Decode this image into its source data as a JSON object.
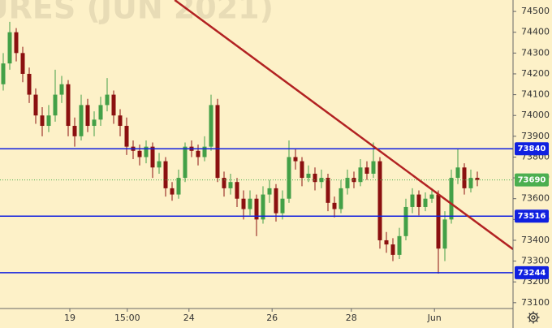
{
  "chart_data": {
    "type": "candlestick",
    "watermark": "URES (JUN 2021)",
    "background": "#fdf1c8",
    "up_color": "#43a047",
    "down_color": "#8b1010",
    "open": [
      74150,
      74250,
      74400,
      74300,
      74200,
      74100,
      74000,
      73950,
      74000,
      74100,
      74150,
      73950,
      73900,
      74050,
      73950,
      73980,
      74050,
      74100,
      74000,
      73950,
      73850,
      73830,
      73800,
      73850,
      73750,
      73780,
      73650,
      73620,
      73700,
      73850,
      73830,
      73800,
      73850,
      74050,
      73700,
      73650,
      73680,
      73600,
      73550,
      73600,
      73500,
      73620,
      73650,
      73530,
      73600,
      73800,
      73780,
      73700,
      73720,
      73680,
      73700,
      73580,
      73550,
      73650,
      73700,
      73680,
      73750,
      73720,
      73780,
      73400,
      73380,
      73330,
      73420,
      73560,
      73620,
      73560,
      73600,
      73620,
      73360,
      73500,
      73700,
      73750,
      73650,
      73700
    ],
    "high": [
      74300,
      74450,
      74420,
      74330,
      74230,
      74130,
      74040,
      74050,
      74220,
      74190,
      74170,
      73990,
      74100,
      74080,
      74020,
      74090,
      74180,
      74120,
      74030,
      73990,
      73880,
      73860,
      73880,
      73870,
      73820,
      73800,
      73680,
      73740,
      73870,
      73880,
      73860,
      73900,
      74100,
      74080,
      73730,
      73720,
      73700,
      73640,
      73640,
      73620,
      73660,
      73690,
      73670,
      73640,
      73880,
      73840,
      73800,
      73760,
      73750,
      73740,
      73720,
      73610,
      73690,
      73740,
      73730,
      73790,
      73780,
      73870,
      73800,
      73440,
      73410,
      73460,
      73600,
      73650,
      73640,
      73630,
      73650,
      73640,
      73540,
      73740,
      73840,
      73770,
      73740,
      73730
    ],
    "low": [
      74120,
      74220,
      74260,
      74160,
      74060,
      73960,
      73900,
      73920,
      73970,
      74060,
      73900,
      73850,
      73880,
      73920,
      73900,
      73950,
      74020,
      73960,
      73900,
      73810,
      73790,
      73760,
      73770,
      73700,
      73720,
      73610,
      73590,
      73600,
      73680,
      73800,
      73760,
      73780,
      73830,
      73680,
      73610,
      73620,
      73560,
      73500,
      73520,
      73420,
      73480,
      73580,
      73490,
      73500,
      73580,
      73740,
      73660,
      73680,
      73640,
      73650,
      73540,
      73510,
      73530,
      73620,
      73650,
      73660,
      73690,
      73700,
      73360,
      73340,
      73300,
      73310,
      73400,
      73530,
      73520,
      73540,
      73580,
      73240,
      73300,
      73480,
      73670,
      73620,
      73630,
      73660
    ],
    "close": [
      74250,
      74400,
      74300,
      74200,
      74100,
      74000,
      73950,
      74000,
      74100,
      74150,
      73950,
      73900,
      74050,
      73950,
      73980,
      74050,
      74100,
      74000,
      73950,
      73850,
      73830,
      73800,
      73850,
      73750,
      73780,
      73650,
      73620,
      73700,
      73850,
      73830,
      73800,
      73850,
      74050,
      73700,
      73650,
      73680,
      73600,
      73550,
      73600,
      73500,
      73620,
      73650,
      73530,
      73600,
      73800,
      73780,
      73700,
      73720,
      73680,
      73700,
      73580,
      73550,
      73650,
      73700,
      73680,
      73750,
      73720,
      73780,
      73400,
      73380,
      73330,
      73420,
      73560,
      73620,
      73560,
      73600,
      73620,
      73360,
      73500,
      73700,
      73750,
      73650,
      73700,
      73690
    ],
    "xlim": [
      0,
      79
    ],
    "xticks": [
      {
        "value": 10.75,
        "label": "19"
      },
      {
        "value": 19.6,
        "label": "15:00"
      },
      {
        "value": 29.1,
        "label": "24"
      },
      {
        "value": 41.9,
        "label": "26"
      },
      {
        "value": 54.1,
        "label": "28"
      },
      {
        "value": 66.9,
        "label": "Jun"
      }
    ],
    "ylim": [
      73072,
      74555
    ],
    "yticks": [
      73100,
      73200,
      73300,
      73400,
      73500,
      73600,
      73700,
      73800,
      73900,
      74000,
      74100,
      74200,
      74300,
      74400,
      74500
    ],
    "levels": [
      73840,
      73516,
      73244
    ],
    "level_color": "#1020e0",
    "last_price": 73690,
    "last_color": "#4caf50",
    "trendline": {
      "x": [
        26.9,
        79
      ],
      "y": [
        74555,
        73357
      ],
      "color": "#b22222"
    }
  }
}
